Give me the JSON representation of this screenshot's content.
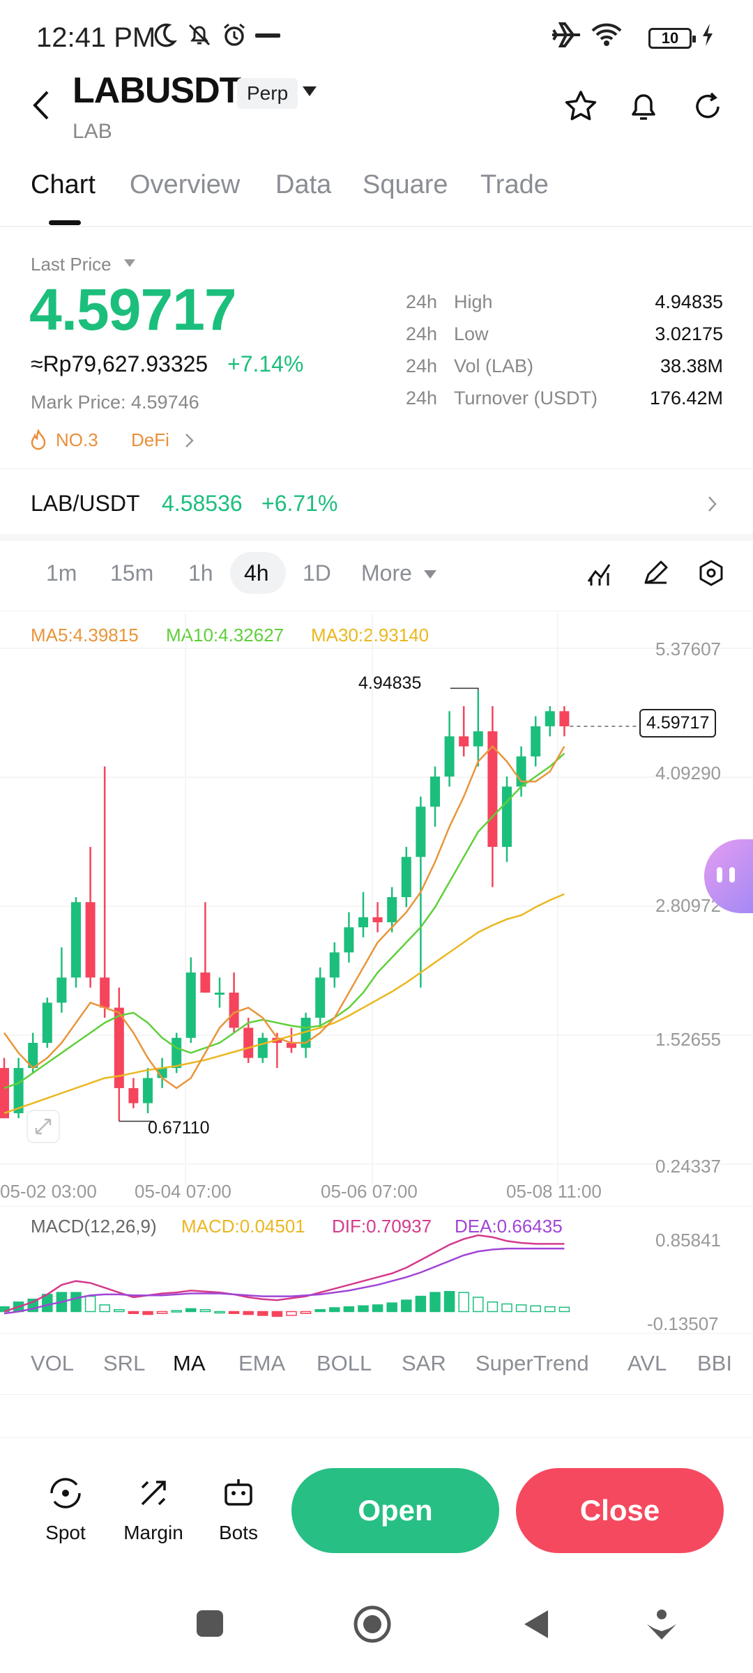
{
  "status": {
    "time": "12:41 PM",
    "battery": "10"
  },
  "header": {
    "title": "LABUSDT",
    "badge": "Perp",
    "subtitle": "LAB"
  },
  "tabs": [
    "Chart",
    "Overview",
    "Data",
    "Square",
    "Trade"
  ],
  "price": {
    "label": "Last Price",
    "last": "4.59717",
    "idr": "≈Rp79,627.93325",
    "change": "+7.14%",
    "mark": "Mark Price: 4.59746",
    "rank_tag": "NO.3",
    "category_tag": "DeFi"
  },
  "stats": [
    {
      "period": "24h",
      "label": "High",
      "value": "4.94835"
    },
    {
      "period": "24h",
      "label": "Low",
      "value": "3.02175"
    },
    {
      "period": "24h",
      "label": "Vol (LAB)",
      "value": "38.38M"
    },
    {
      "period": "24h",
      "label": "Turnover (USDT)",
      "value": "176.42M"
    }
  ],
  "spot": {
    "pair": "LAB/USDT",
    "price": "4.58536",
    "change": "+6.71%"
  },
  "timeframes": {
    "items": [
      "1m",
      "15m",
      "1h",
      "4h",
      "1D",
      "More"
    ],
    "active": "4h"
  },
  "ma": {
    "ma5": "MA5:4.39815",
    "ma10": "MA10:4.32627",
    "ma30": "MA30:2.93140"
  },
  "chart_axis": {
    "y_labels": [
      "5.37607",
      "4.09290",
      "2.80972",
      "1.52655",
      "0.24337"
    ],
    "x_labels": [
      "05-02 03:00",
      "05-04 07:00",
      "05-06 07:00",
      "05-08 11:00"
    ],
    "high_marker": "4.94835",
    "low_marker": "0.67110",
    "current_marker": "4.59717"
  },
  "macd": {
    "title": "MACD(12,26,9)",
    "macd": "MACD:0.04501",
    "dif": "DIF:0.70937",
    "dea": "DEA:0.66435",
    "y_top": "0.85841",
    "y_bottom": "-0.13507"
  },
  "indicators": {
    "items": [
      "VOL",
      "SRL",
      "MA",
      "EMA",
      "BOLL",
      "SAR",
      "SuperTrend",
      "AVL",
      "BBI"
    ],
    "active": "MA"
  },
  "actions": {
    "spot": "Spot",
    "margin": "Margin",
    "bots": "Bots",
    "open": "Open",
    "close": "Close"
  },
  "colors": {
    "up": "#1cbe7c",
    "down": "#f5445c",
    "ma5": "#e8953a",
    "ma10": "#5fcf3a",
    "ma30": "#eab720",
    "dif": "#d43a8c",
    "dea": "#a045d6"
  },
  "chart_data": {
    "type": "candlestick",
    "timeframe": "4h",
    "x_range": [
      "05-02 03:00",
      "05-08 11:00"
    ],
    "ylim": [
      0.24337,
      5.37607
    ],
    "candles": [
      {
        "o": 1.2,
        "h": 1.3,
        "l": 0.7,
        "c": 0.7
      },
      {
        "o": 0.75,
        "h": 1.3,
        "l": 0.7,
        "c": 1.2
      },
      {
        "o": 1.2,
        "h": 1.55,
        "l": 1.15,
        "c": 1.45
      },
      {
        "o": 1.45,
        "h": 1.9,
        "l": 1.4,
        "c": 1.85
      },
      {
        "o": 1.85,
        "h": 2.4,
        "l": 1.75,
        "c": 2.1
      },
      {
        "o": 2.1,
        "h": 2.9,
        "l": 2.0,
        "c": 2.85
      },
      {
        "o": 2.85,
        "h": 3.4,
        "l": 2.0,
        "c": 2.1
      },
      {
        "o": 2.1,
        "h": 4.2,
        "l": 1.7,
        "c": 1.8
      },
      {
        "o": 1.8,
        "h": 2.0,
        "l": 0.67,
        "c": 1.0
      },
      {
        "o": 1.0,
        "h": 1.1,
        "l": 0.8,
        "c": 0.85
      },
      {
        "o": 0.85,
        "h": 1.2,
        "l": 0.75,
        "c": 1.1
      },
      {
        "o": 1.1,
        "h": 1.3,
        "l": 1.0,
        "c": 1.2
      },
      {
        "o": 1.2,
        "h": 1.55,
        "l": 1.15,
        "c": 1.5
      },
      {
        "o": 1.5,
        "h": 2.3,
        "l": 1.45,
        "c": 2.15
      },
      {
        "o": 2.15,
        "h": 2.85,
        "l": 1.95,
        "c": 1.95
      },
      {
        "o": 1.95,
        "h": 2.1,
        "l": 1.8,
        "c": 1.95
      },
      {
        "o": 1.95,
        "h": 2.15,
        "l": 1.55,
        "c": 1.6
      },
      {
        "o": 1.6,
        "h": 1.7,
        "l": 1.25,
        "c": 1.3
      },
      {
        "o": 1.3,
        "h": 1.55,
        "l": 1.25,
        "c": 1.5
      },
      {
        "o": 1.5,
        "h": 1.55,
        "l": 1.2,
        "c": 1.45
      },
      {
        "o": 1.45,
        "h": 1.6,
        "l": 1.35,
        "c": 1.4
      },
      {
        "o": 1.4,
        "h": 1.75,
        "l": 1.3,
        "c": 1.7
      },
      {
        "o": 1.7,
        "h": 2.2,
        "l": 1.6,
        "c": 2.1
      },
      {
        "o": 2.1,
        "h": 2.45,
        "l": 2.0,
        "c": 2.35
      },
      {
        "o": 2.35,
        "h": 2.75,
        "l": 2.25,
        "c": 2.6
      },
      {
        "o": 2.6,
        "h": 2.95,
        "l": 2.5,
        "c": 2.7
      },
      {
        "o": 2.7,
        "h": 2.85,
        "l": 2.55,
        "c": 2.65
      },
      {
        "o": 2.65,
        "h": 3.0,
        "l": 2.55,
        "c": 2.9
      },
      {
        "o": 2.9,
        "h": 3.4,
        "l": 2.8,
        "c": 3.3
      },
      {
        "o": 3.3,
        "h": 3.9,
        "l": 2.0,
        "c": 3.8
      },
      {
        "o": 3.8,
        "h": 4.2,
        "l": 3.6,
        "c": 4.1
      },
      {
        "o": 4.1,
        "h": 4.75,
        "l": 4.0,
        "c": 4.5
      },
      {
        "o": 4.5,
        "h": 4.8,
        "l": 4.3,
        "c": 4.4
      },
      {
        "o": 4.4,
        "h": 4.95,
        "l": 4.2,
        "c": 4.55
      },
      {
        "o": 4.55,
        "h": 4.8,
        "l": 3.0,
        "c": 3.4
      },
      {
        "o": 3.4,
        "h": 4.1,
        "l": 3.25,
        "c": 4.0
      },
      {
        "o": 4.0,
        "h": 4.4,
        "l": 3.9,
        "c": 4.3
      },
      {
        "o": 4.3,
        "h": 4.7,
        "l": 4.2,
        "c": 4.6
      },
      {
        "o": 4.6,
        "h": 4.8,
        "l": 4.5,
        "c": 4.75
      },
      {
        "o": 4.75,
        "h": 4.8,
        "l": 4.5,
        "c": 4.6
      }
    ],
    "ma5": [
      1.55,
      1.35,
      1.2,
      1.3,
      1.45,
      1.65,
      1.85,
      1.8,
      1.75,
      1.55,
      1.3,
      1.1,
      1.0,
      1.1,
      1.35,
      1.6,
      1.75,
      1.8,
      1.7,
      1.5,
      1.45,
      1.45,
      1.55,
      1.7,
      1.95,
      2.2,
      2.45,
      2.6,
      2.75,
      2.95,
      3.25,
      3.6,
      3.9,
      4.25,
      4.4,
      4.25,
      4.05,
      4.05,
      4.15,
      4.4
    ],
    "ma10": [
      1.0,
      1.05,
      1.15,
      1.25,
      1.35,
      1.45,
      1.55,
      1.65,
      1.72,
      1.75,
      1.65,
      1.5,
      1.4,
      1.35,
      1.4,
      1.45,
      1.55,
      1.65,
      1.68,
      1.65,
      1.62,
      1.6,
      1.62,
      1.7,
      1.8,
      1.95,
      2.15,
      2.3,
      2.45,
      2.6,
      2.8,
      3.05,
      3.3,
      3.55,
      3.7,
      3.85,
      4.0,
      4.1,
      4.2,
      4.33
    ],
    "ma30": [
      0.75,
      0.8,
      0.85,
      0.9,
      0.95,
      1.0,
      1.05,
      1.1,
      1.12,
      1.15,
      1.18,
      1.2,
      1.22,
      1.25,
      1.28,
      1.32,
      1.36,
      1.4,
      1.44,
      1.48,
      1.52,
      1.56,
      1.6,
      1.65,
      1.72,
      1.8,
      1.88,
      1.96,
      2.05,
      2.15,
      2.25,
      2.35,
      2.45,
      2.55,
      2.62,
      2.68,
      2.72,
      2.8,
      2.87,
      2.93
    ],
    "macd_hist": [
      0.05,
      0.1,
      0.13,
      0.18,
      0.2,
      0.2,
      0.16,
      0.07,
      0.02,
      -0.02,
      -0.03,
      -0.02,
      0.01,
      0.03,
      0.02,
      0.0,
      -0.02,
      -0.03,
      -0.04,
      -0.05,
      -0.04,
      -0.02,
      0.02,
      0.04,
      0.05,
      0.06,
      0.07,
      0.09,
      0.12,
      0.16,
      0.2,
      0.21,
      0.2,
      0.15,
      0.1,
      0.08,
      0.07,
      0.06,
      0.05,
      0.045
    ],
    "dif": [
      0.0,
      0.05,
      0.1,
      0.18,
      0.28,
      0.32,
      0.3,
      0.25,
      0.2,
      0.15,
      0.17,
      0.19,
      0.2,
      0.22,
      0.21,
      0.2,
      0.18,
      0.15,
      0.13,
      0.12,
      0.14,
      0.16,
      0.2,
      0.24,
      0.28,
      0.32,
      0.36,
      0.4,
      0.46,
      0.54,
      0.62,
      0.7,
      0.76,
      0.8,
      0.78,
      0.74,
      0.72,
      0.71,
      0.71,
      0.71
    ],
    "dea": [
      -0.02,
      0.0,
      0.03,
      0.07,
      0.1,
      0.14,
      0.17,
      0.18,
      0.18,
      0.17,
      0.17,
      0.17,
      0.18,
      0.19,
      0.19,
      0.19,
      0.18,
      0.17,
      0.16,
      0.16,
      0.16,
      0.17,
      0.18,
      0.2,
      0.22,
      0.25,
      0.28,
      0.32,
      0.36,
      0.41,
      0.47,
      0.53,
      0.59,
      0.63,
      0.65,
      0.66,
      0.66,
      0.66,
      0.66,
      0.66
    ]
  }
}
